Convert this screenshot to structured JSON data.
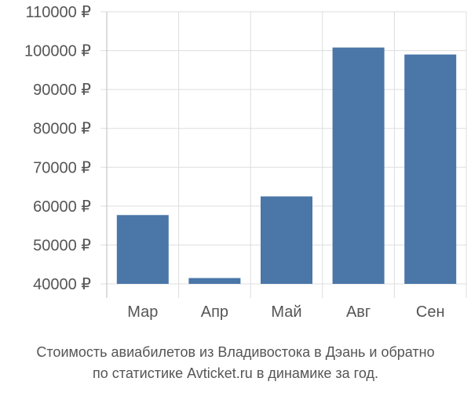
{
  "chart_data": {
    "type": "bar",
    "categories": [
      "Мар",
      "Апр",
      "Май",
      "Авг",
      "Сен"
    ],
    "values": [
      57700,
      41500,
      62500,
      100800,
      99000
    ],
    "ylim": [
      40000,
      110000
    ],
    "yticks": [
      40000,
      50000,
      60000,
      70000,
      80000,
      90000,
      100000,
      110000
    ],
    "ytick_labels": [
      "40000 ₽",
      "50000 ₽",
      "60000 ₽",
      "70000 ₽",
      "80000 ₽",
      "90000 ₽",
      "100000 ₽",
      "110000 ₽"
    ],
    "grid": true,
    "bar_color": "#4a76a8",
    "caption": [
      "Стоимость авиабилетов из Владивостока в Дэань и обратно",
      "по статистике Avticket.ru в динамике за год."
    ]
  }
}
